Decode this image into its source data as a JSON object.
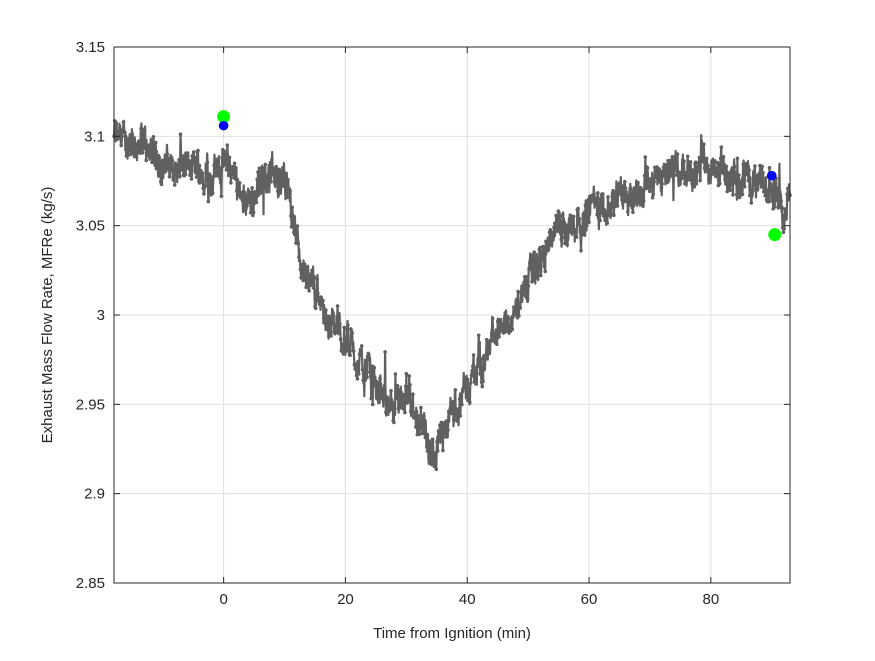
{
  "chart_data": {
    "type": "line",
    "xlabel": "Time from Ignition (min)",
    "ylabel": "Exhaust Mass Flow Rate, MFRe (kg/s)",
    "xlim": [
      -18,
      93
    ],
    "ylim": [
      2.85,
      3.15
    ],
    "x_ticks": [
      0,
      20,
      40,
      60,
      80
    ],
    "y_ticks": [
      2.85,
      2.9,
      2.95,
      3.0,
      3.05,
      3.1,
      3.15
    ],
    "x_tick_labels": [
      "0",
      "20",
      "40",
      "60",
      "80"
    ],
    "y_tick_labels": [
      "2.85",
      "2.9",
      "2.95",
      "3",
      "3.05",
      "3.1",
      "3.15"
    ],
    "grid": true,
    "series": [
      {
        "color": "#606060",
        "marker": "dot",
        "x_step": 0.06,
        "trend": [
          [
            -18,
            3.1
          ],
          [
            -10,
            3.085
          ],
          [
            -2,
            3.08
          ],
          [
            0,
            3.085
          ],
          [
            4,
            3.065
          ],
          [
            8,
            3.08
          ],
          [
            10,
            3.075
          ],
          [
            13,
            3.03
          ],
          [
            17,
            3.0
          ],
          [
            22,
            2.975
          ],
          [
            26,
            2.955
          ],
          [
            30,
            2.945
          ],
          [
            33,
            2.93
          ],
          [
            34,
            2.91
          ],
          [
            36,
            2.935
          ],
          [
            40,
            2.96
          ],
          [
            44,
            2.985
          ],
          [
            48,
            3.005
          ],
          [
            52,
            3.03
          ],
          [
            56,
            3.05
          ],
          [
            60,
            3.06
          ],
          [
            66,
            3.07
          ],
          [
            72,
            3.075
          ],
          [
            80,
            3.08
          ],
          [
            86,
            3.075
          ],
          [
            93,
            3.065
          ]
        ],
        "noise_amplitude": 0.022
      }
    ],
    "markers": [
      {
        "x": 0,
        "y": 3.111,
        "color": "#00ff00",
        "size": "large"
      },
      {
        "x": 0,
        "y": 3.106,
        "color": "#0000ff",
        "size": "small"
      },
      {
        "x": 90.5,
        "y": 3.045,
        "color": "#00ff00",
        "size": "large"
      },
      {
        "x": 90,
        "y": 3.078,
        "color": "#0000ff",
        "size": "small"
      }
    ],
    "colors": {
      "axis": "#262626",
      "grid": "#dfdfdf",
      "line": "#606060"
    }
  }
}
